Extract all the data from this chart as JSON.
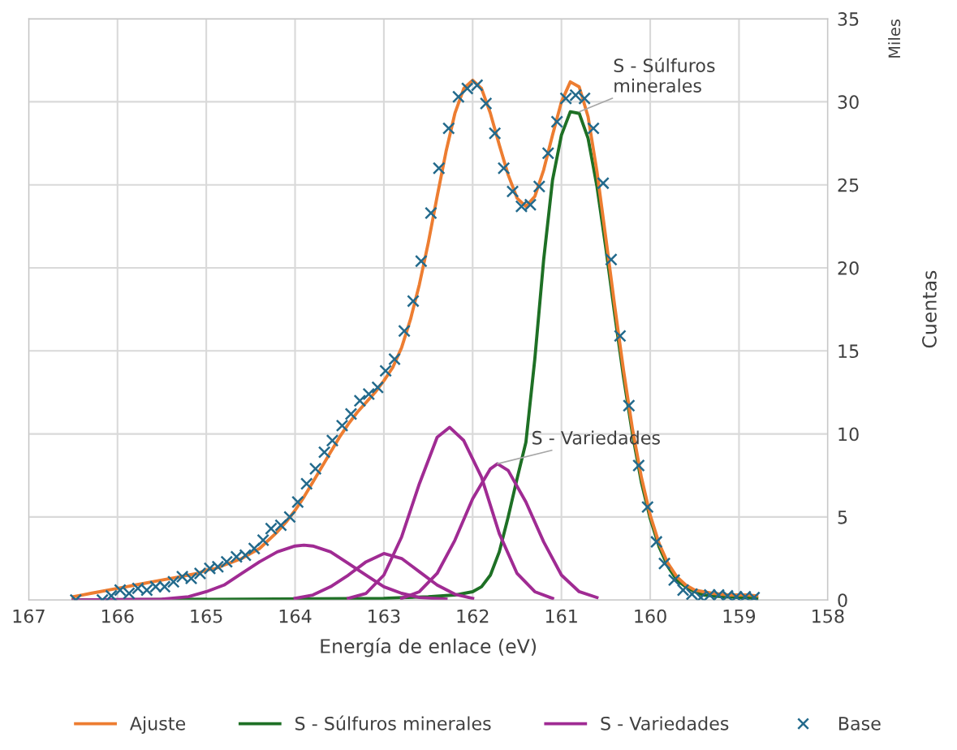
{
  "chart_data": {
    "type": "line",
    "xlabel": "Energía de enlace (eV)",
    "ylabel": "Cuentas",
    "xlim": [
      167,
      158
    ],
    "xticks": [
      167,
      166,
      165,
      164,
      163,
      162,
      161,
      160,
      159,
      158
    ],
    "ylim": [
      0,
      35
    ],
    "yticks": [
      0,
      5,
      10,
      15,
      20,
      25,
      30,
      35
    ],
    "grid": true,
    "legend": "bottom",
    "annotations": [
      {
        "text": "S - Súlfuros\nminerales",
        "x": 160.8,
        "y": 29.4
      },
      {
        "text": "S - Variedades",
        "x": 161.72,
        "y": 8.2
      },
      "Miles"
    ],
    "series": [
      {
        "name": "Ajuste",
        "marker": "none",
        "color": "#ed7d31",
        "x": [
          166.5,
          166.4,
          166.3,
          166.2,
          166.1,
          166.0,
          165.9,
          165.8,
          165.7,
          165.6,
          165.5,
          165.4,
          165.3,
          165.2,
          165.1,
          165.0,
          164.9,
          164.8,
          164.7,
          164.6,
          164.5,
          164.4,
          164.3,
          164.2,
          164.1,
          164.0,
          163.9,
          163.8,
          163.7,
          163.6,
          163.5,
          163.4,
          163.3,
          163.2,
          163.1,
          163.0,
          162.9,
          162.8,
          162.7,
          162.6,
          162.5,
          162.4,
          162.3,
          162.2,
          162.1,
          162.0,
          161.9,
          161.8,
          161.7,
          161.6,
          161.5,
          161.4,
          161.3,
          161.2,
          161.1,
          161.0,
          160.9,
          160.8,
          160.7,
          160.6,
          160.5,
          160.4,
          160.3,
          160.2,
          160.1,
          160.0,
          159.9,
          159.8,
          159.7,
          159.6,
          159.5,
          159.4,
          159.3,
          159.2,
          159.1,
          159.0,
          158.9,
          158.8
        ],
        "values": [
          0.2,
          0.3,
          0.4,
          0.5,
          0.6,
          0.7,
          0.8,
          0.9,
          1.0,
          1.1,
          1.2,
          1.3,
          1.4,
          1.5,
          1.6,
          1.8,
          1.9,
          2.1,
          2.3,
          2.5,
          2.8,
          3.1,
          3.6,
          4.1,
          4.7,
          5.4,
          6.2,
          7.1,
          8.0,
          8.9,
          9.8,
          10.6,
          11.3,
          11.9,
          12.5,
          13.2,
          14.0,
          15.2,
          16.9,
          19.0,
          21.5,
          24.3,
          27.0,
          29.3,
          30.8,
          31.3,
          30.8,
          29.3,
          27.4,
          25.6,
          24.2,
          23.7,
          24.3,
          25.9,
          28.0,
          30.0,
          31.2,
          30.9,
          29.1,
          25.8,
          21.8,
          17.7,
          13.8,
          10.3,
          7.4,
          5.1,
          3.4,
          2.2,
          1.4,
          0.9,
          0.6,
          0.5,
          0.4,
          0.35,
          0.3,
          0.3,
          0.3,
          0.25
        ]
      },
      {
        "name": "S - Súlfuros minerales",
        "marker": "none",
        "color": "#1e7025",
        "x": [
          166.5,
          163.0,
          162.5,
          162.2,
          162.0,
          161.9,
          161.8,
          161.7,
          161.6,
          161.5,
          161.4,
          161.3,
          161.2,
          161.1,
          161.0,
          160.9,
          160.8,
          160.7,
          160.6,
          160.5,
          160.4,
          160.3,
          160.2,
          160.1,
          160.0,
          159.9,
          159.8,
          159.7,
          159.6,
          159.5,
          159.4,
          159.2,
          159.0,
          158.8
        ],
        "values": [
          0,
          0.1,
          0.2,
          0.3,
          0.5,
          0.8,
          1.5,
          2.9,
          5.0,
          7.3,
          9.5,
          14.5,
          20.5,
          25.3,
          28.0,
          29.4,
          29.3,
          27.8,
          24.9,
          21.2,
          17.2,
          13.4,
          10.0,
          7.1,
          4.9,
          3.2,
          2.0,
          1.2,
          0.8,
          0.5,
          0.3,
          0.2,
          0.15,
          0.1
        ]
      },
      {
        "name": "S - Variedades",
        "marker": "none",
        "color": "#a02b93",
        "x": [
          166.5,
          165.5,
          165.2,
          165.0,
          164.8,
          164.6,
          164.4,
          164.2,
          164.0,
          163.9,
          163.8,
          163.6,
          163.4,
          163.2,
          163.0,
          162.8,
          162.6,
          162.3
        ],
        "values": [
          0,
          0.05,
          0.2,
          0.5,
          0.9,
          1.6,
          2.3,
          2.9,
          3.25,
          3.3,
          3.25,
          2.9,
          2.2,
          1.5,
          0.8,
          0.4,
          0.15,
          0.05
        ]
      },
      {
        "marker": "none",
        "color": "#a02b93",
        "x": [
          164.0,
          163.8,
          163.6,
          163.4,
          163.2,
          163.0,
          162.8,
          162.6,
          162.4,
          162.2,
          162.0
        ],
        "values": [
          0.1,
          0.3,
          0.8,
          1.5,
          2.3,
          2.8,
          2.5,
          1.7,
          0.9,
          0.35,
          0.1
        ]
      },
      {
        "marker": "none",
        "color": "#a02b93",
        "x": [
          163.4,
          163.2,
          163.0,
          162.8,
          162.6,
          162.4,
          162.26,
          162.1,
          161.9,
          161.7,
          161.5,
          161.3,
          161.1
        ],
        "values": [
          0.1,
          0.4,
          1.5,
          3.8,
          7.0,
          9.8,
          10.4,
          9.6,
          7.4,
          4.0,
          1.6,
          0.5,
          0.1
        ]
      },
      {
        "marker": "none",
        "color": "#a02b93",
        "x": [
          162.8,
          162.6,
          162.4,
          162.2,
          162.0,
          161.8,
          161.72,
          161.6,
          161.4,
          161.2,
          161.0,
          160.8,
          160.6
        ],
        "values": [
          0.1,
          0.5,
          1.6,
          3.6,
          6.1,
          7.9,
          8.2,
          7.8,
          5.9,
          3.5,
          1.5,
          0.5,
          0.15
        ]
      },
      {
        "name": "Base",
        "type": "scatter",
        "marker": "cross",
        "color": "#236a8c",
        "x": [
          166.47,
          166.17,
          166.07,
          165.97,
          165.87,
          165.77,
          165.67,
          165.57,
          165.47,
          165.37,
          165.27,
          165.17,
          165.07,
          164.96,
          164.87,
          164.77,
          164.66,
          164.56,
          164.46,
          164.36,
          164.27,
          164.16,
          164.06,
          163.97,
          163.87,
          163.77,
          163.67,
          163.58,
          163.47,
          163.37,
          163.27,
          163.17,
          163.07,
          162.98,
          162.88,
          162.77,
          162.67,
          162.58,
          162.47,
          162.38,
          162.27,
          162.16,
          162.06,
          161.95,
          161.85,
          161.75,
          161.65,
          161.55,
          161.45,
          161.35,
          161.25,
          161.15,
          161.05,
          160.95,
          160.84,
          160.74,
          160.64,
          160.53,
          160.44,
          160.34,
          160.24,
          160.13,
          160.03,
          159.93,
          159.84,
          159.73,
          159.63,
          159.53,
          159.43,
          159.33,
          159.23,
          159.13,
          159.03,
          158.93,
          158.83
        ],
        "values": [
          0.0,
          0.0,
          0.25,
          0.6,
          0.4,
          0.7,
          0.6,
          0.8,
          0.8,
          1.1,
          1.4,
          1.3,
          1.6,
          1.9,
          2.0,
          2.3,
          2.6,
          2.7,
          3.1,
          3.6,
          4.3,
          4.5,
          5.0,
          5.9,
          7.0,
          7.9,
          8.9,
          9.6,
          10.5,
          11.2,
          12.0,
          12.4,
          12.8,
          13.8,
          14.5,
          16.2,
          18.0,
          20.4,
          23.3,
          26.0,
          28.4,
          30.3,
          30.8,
          31.0,
          29.9,
          28.1,
          26.0,
          24.6,
          23.7,
          23.8,
          24.9,
          26.9,
          28.8,
          30.2,
          30.4,
          30.2,
          28.4,
          25.1,
          20.5,
          15.9,
          11.7,
          8.1,
          5.6,
          3.5,
          2.2,
          1.2,
          0.6,
          0.35,
          0.15,
          0.3,
          0.3,
          0.25,
          0.2,
          0.2,
          0.15
        ]
      }
    ]
  }
}
